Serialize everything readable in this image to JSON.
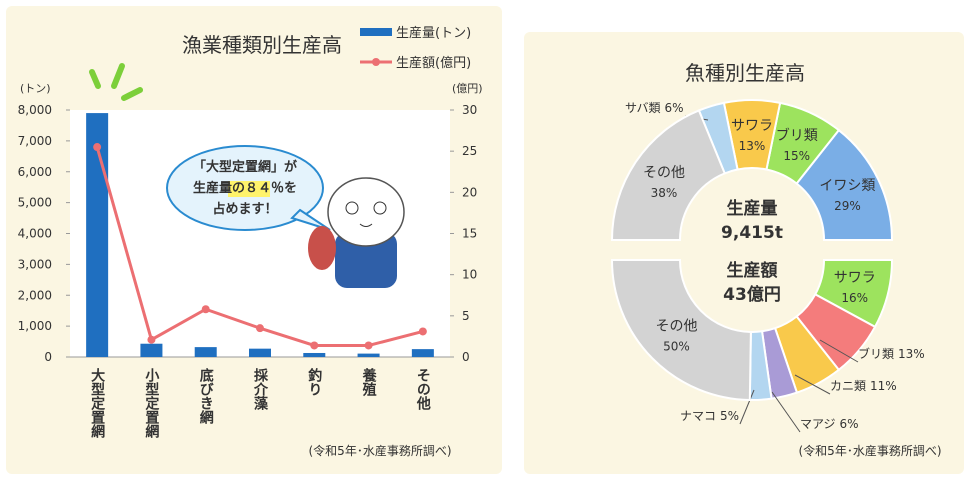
{
  "chart_data": [
    {
      "type": "bar",
      "title": "漁業種類別生産高",
      "y_unit": "(トン)",
      "y2_unit": "(億円)",
      "categories": [
        "大型定置網",
        "小型定置網",
        "底びき網",
        "採介藻",
        "釣り",
        "養殖",
        "その他"
      ],
      "series": [
        {
          "name": "生産量(トン)",
          "color": "#1f6fc0",
          "values": [
            7900,
            430,
            320,
            270,
            130,
            110,
            255
          ]
        },
        {
          "name": "生産額(億円)",
          "color": "#ec6f72",
          "axis": "y2",
          "values": [
            25.5,
            2.1,
            5.8,
            3.5,
            1.4,
            1.4,
            3.1
          ]
        }
      ],
      "ylim": [
        0,
        8000
      ],
      "yticks": [
        0,
        {
          "value": 1000,
          "label": "1,000"
        },
        {
          "value": 2000,
          "label": "2,000"
        },
        {
          "value": 3000,
          "label": "3,000"
        },
        {
          "value": 4000,
          "label": "4,000"
        },
        {
          "value": 5000,
          "label": "5,000"
        },
        {
          "value": 6000,
          "label": "6,000"
        },
        {
          "value": 7000,
          "label": "7,000"
        },
        {
          "value": 8000,
          "label": "8,000"
        }
      ],
      "y2lim": [
        0,
        30
      ],
      "y2ticks": [
        0,
        5,
        10,
        15,
        20,
        25,
        30
      ],
      "annotation": [
        "「大型定置網」が",
        "生産量の８４％を",
        "占めます！"
      ],
      "note": "(令和5年･水産事務所調べ)"
    },
    {
      "type": "split-donut",
      "title": "魚種別生産高",
      "halves": [
        {
          "label": "生産量",
          "total": "9,415t",
          "categories": [
            "イワシ類",
            "ブリ類",
            "サワラ",
            "サバ類",
            "その他"
          ],
          "values": [
            29,
            15,
            13,
            6,
            38
          ],
          "value_labels": [
            "29%",
            "15%",
            "13%",
            "6%",
            "38%"
          ],
          "colors": [
            "#7aaee6",
            "#9de35e",
            "#f9c94b",
            "#b3d6f0",
            "#d3d3d3"
          ]
        },
        {
          "label": "生産額",
          "total": "43億円",
          "categories": [
            "サワラ",
            "ブリ類",
            "カニ類",
            "マアジ",
            "ナマコ",
            "その他"
          ],
          "values": [
            16,
            13,
            11,
            6,
            5,
            50
          ],
          "value_labels": [
            "16%",
            "13%",
            "11%",
            "6%",
            "5%",
            "50%"
          ],
          "colors": [
            "#9de35e",
            "#f47c7c",
            "#f9c94b",
            "#a99bd6",
            "#b3d6f0",
            "#d3d3d3"
          ]
        }
      ],
      "note": "(令和5年･水産事務所調べ)"
    }
  ]
}
